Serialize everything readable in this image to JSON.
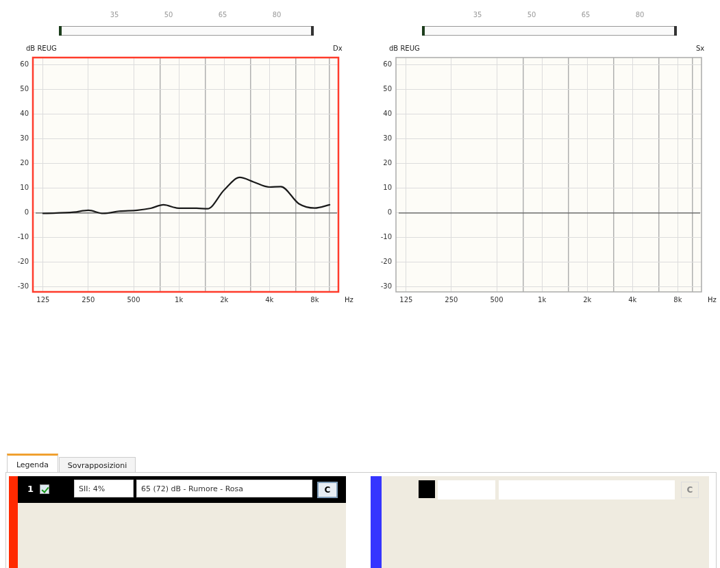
{
  "chart_data": [
    {
      "type": "line",
      "title": "Dx",
      "ylabel": "dB REUG",
      "xlabel": "Hz",
      "log": "x",
      "grid": true,
      "legend": false,
      "marker": "none",
      "line_style": "solid",
      "x": [
        125,
        200,
        250,
        314,
        400,
        529,
        650,
        790,
        1000,
        1310,
        1550,
        2000,
        2540,
        3130,
        4000,
        4760,
        6290,
        8000,
        10050
      ],
      "series": [
        {
          "color": "#1a1a1a",
          "values": [
            -0.2,
            0.3,
            1.1,
            -0.2,
            0.7,
            1.1,
            1.9,
            3.3,
            1.9,
            1.9,
            1.7,
            9.3,
            14.4,
            12.6,
            10.5,
            10.7,
            3.7,
            2.0,
            3.3
          ]
        }
      ],
      "xlim": [
        107,
        11500
      ],
      "xticks": [
        125,
        250,
        500,
        {
          "value": 750,
          "label": null
        },
        {
          "value": 1000,
          "label": "1k"
        },
        {
          "value": 1500,
          "label": null
        },
        {
          "value": 2000,
          "label": "2k"
        },
        {
          "value": 3000,
          "label": null
        },
        {
          "value": 4000,
          "label": "4k"
        },
        {
          "value": 6000,
          "label": null
        },
        {
          "value": 8000,
          "label": "8k"
        },
        {
          "value": 10000,
          "label": null
        }
      ],
      "ylim": [
        -32,
        63
      ],
      "yticks": [
        -30,
        -20,
        -10,
        0,
        10,
        20,
        30,
        40,
        50,
        60
      ],
      "ref_lines": [
        {
          "axis": "y",
          "value": 0,
          "color": "#555555"
        }
      ],
      "annotations": [
        "35",
        "50",
        "65",
        "80"
      ]
    },
    {
      "type": "line",
      "title": "Sx",
      "ylabel": "dB REUG",
      "xlabel": "Hz",
      "log": "x",
      "grid": true,
      "legend": false,
      "xlim": [
        107,
        11500
      ],
      "xticks": [
        125,
        250,
        500,
        {
          "value": 750,
          "label": null
        },
        {
          "value": 1000,
          "label": "1k"
        },
        {
          "value": 1500,
          "label": null
        },
        {
          "value": 2000,
          "label": "2k"
        },
        {
          "value": 3000,
          "label": null
        },
        {
          "value": 4000,
          "label": "4k"
        },
        {
          "value": 6000,
          "label": null
        },
        {
          "value": 8000,
          "label": "8k"
        },
        {
          "value": 10000,
          "label": null
        }
      ],
      "ylim": [
        -32,
        63
      ],
      "yticks": [
        -30,
        -20,
        -10,
        0,
        10,
        20,
        30,
        40,
        50,
        60
      ],
      "ref_lines": [
        {
          "axis": "y",
          "value": 0,
          "color": "#555555"
        }
      ],
      "annotations": [
        "35",
        "50",
        "65",
        "80"
      ]
    },
    {
      "type": "other",
      "annotations": [
        "Legenda",
        "Sovrapposizioni",
        "1",
        "SII: 4%",
        "65 (72) dB - Rumore - Rosa",
        "C",
        "C"
      ]
    }
  ]
}
